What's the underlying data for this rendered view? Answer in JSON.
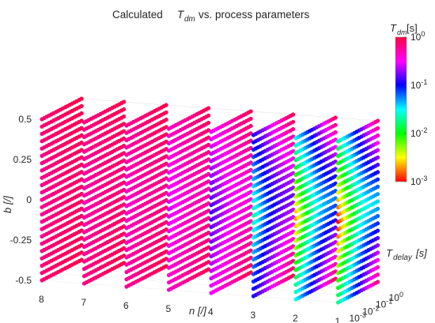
{
  "chart_data": {
    "type": "scatter",
    "title_prefix": "Calculated",
    "title_symbol": "T",
    "title_symbol_sub": "dm",
    "title_suffix": "vs. process parameters",
    "x_axis": {
      "symbol": "n",
      "unit": "[/]",
      "ticks": [
        "8",
        "7",
        "6",
        "5",
        "4",
        "3",
        "2",
        "1"
      ]
    },
    "y_axis": {
      "symbol": "T",
      "symbol_sub": "delay",
      "unit": "[s]",
      "scale": "log",
      "range": [
        0.001,
        1
      ],
      "ticks": [
        {
          "base": "10",
          "exp": "0"
        },
        {
          "base": "10",
          "exp": "-1"
        },
        {
          "base": "10",
          "exp": "-2"
        },
        {
          "base": "10",
          "exp": "-3"
        }
      ]
    },
    "z_axis": {
      "symbol": "b",
      "unit": "[/]",
      "range": [
        -0.5,
        0.5
      ],
      "ticks": [
        "0.5",
        "0.25",
        "0",
        "-0.25",
        "-0.5"
      ]
    },
    "colorbar": {
      "symbol": "T",
      "symbol_sub": "dm",
      "unit": "[s]",
      "scale": "log",
      "range": [
        0.001,
        1
      ],
      "colormap": "hsv-reversed",
      "ticks": [
        {
          "base": "10",
          "exp": "0"
        },
        {
          "base": "10",
          "exp": "-1"
        },
        {
          "base": "10",
          "exp": "-2"
        },
        {
          "base": "10",
          "exp": "-3"
        }
      ]
    },
    "grid": true,
    "slices": [
      {
        "n": 8,
        "tdm_range": [
          0.6,
          0.95
        ]
      },
      {
        "n": 7,
        "tdm_range": [
          0.5,
          0.95
        ]
      },
      {
        "n": 6,
        "tdm_range": [
          0.4,
          0.95
        ]
      },
      {
        "n": 5,
        "tdm_range": [
          0.25,
          0.9
        ]
      },
      {
        "n": 4,
        "tdm_range": [
          0.12,
          0.9
        ]
      },
      {
        "n": 3,
        "tdm_range": [
          0.02,
          0.9
        ]
      },
      {
        "n": 2,
        "tdm_range": [
          0.002,
          0.8
        ]
      },
      {
        "n": 1,
        "tdm_range": [
          0.001,
          0.7
        ]
      }
    ]
  }
}
